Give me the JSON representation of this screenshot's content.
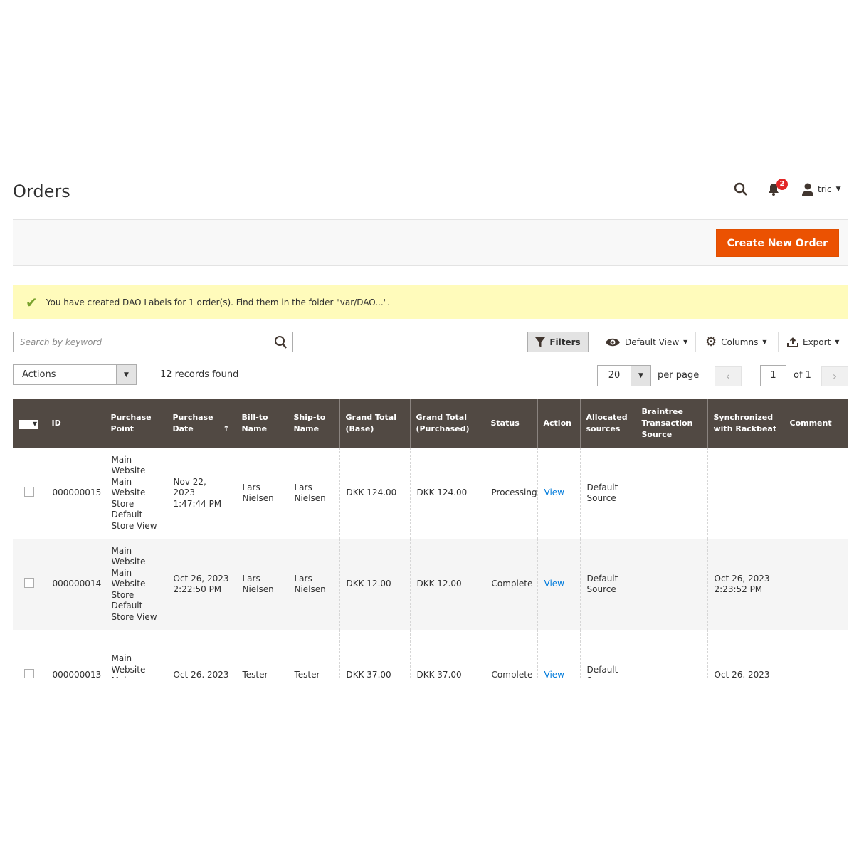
{
  "header": {
    "title": "Orders",
    "notification_count": "2",
    "user": "tric"
  },
  "action_bar": {
    "create_label": "Create New Order",
    "create_color": "#eb5202"
  },
  "message": "You have created DAO Labels for 1 order(s). Find them in the folder \"var/DAO...\".",
  "toolbar": {
    "search_placeholder": "Search by keyword",
    "filters": "Filters",
    "view": "Default View",
    "columns": "Columns",
    "export": "Export",
    "actions": "Actions",
    "records": "12 records found",
    "per_page_value": "20",
    "per_page_label": "per page",
    "page": "1",
    "of": "of 1"
  },
  "grid": {
    "columns": [
      "ID",
      "Purchase Point",
      "Purchase Date",
      "Bill-to Name",
      "Ship-to Name",
      "Grand Total (Base)",
      "Grand Total (Purchased)",
      "Status",
      "Action",
      "Allocated sources",
      "Braintree Transaction Source",
      "Synchronized with Rackbeat",
      "Comment"
    ],
    "rows": [
      {
        "id": "000000015",
        "purchase_point": "Main Website Main Website Store Default Store View",
        "date": "Nov 22, 2023 1:47:44 PM",
        "bill": "Lars Nielsen",
        "ship": "Lars Nielsen",
        "base": "DKK 124.00",
        "purchased": "DKK 124.00",
        "status": "Processing",
        "action": "View",
        "sources": "Default Source",
        "braintree": "",
        "rackbeat": "",
        "comment": ""
      },
      {
        "id": "000000014",
        "purchase_point": "Main Website Main Website Store Default Store View",
        "date": "Oct 26, 2023 2:22:50 PM",
        "bill": "Lars Nielsen",
        "ship": "Lars Nielsen",
        "base": "DKK 12.00",
        "purchased": "DKK 12.00",
        "status": "Complete",
        "action": "View",
        "sources": "Default Source",
        "braintree": "",
        "rackbeat": "Oct 26, 2023 2:23:52 PM",
        "comment": ""
      },
      {
        "id": "000000013",
        "purchase_point": "Main Website Main Website",
        "date": "Oct 26, 2023",
        "bill": "Tester",
        "ship": "Tester",
        "base": "DKK 37.00",
        "purchased": "DKK 37.00",
        "status": "Complete",
        "action": "View",
        "sources": "Default Source",
        "braintree": "",
        "rackbeat": "Oct 26, 2023",
        "comment": ""
      }
    ]
  }
}
